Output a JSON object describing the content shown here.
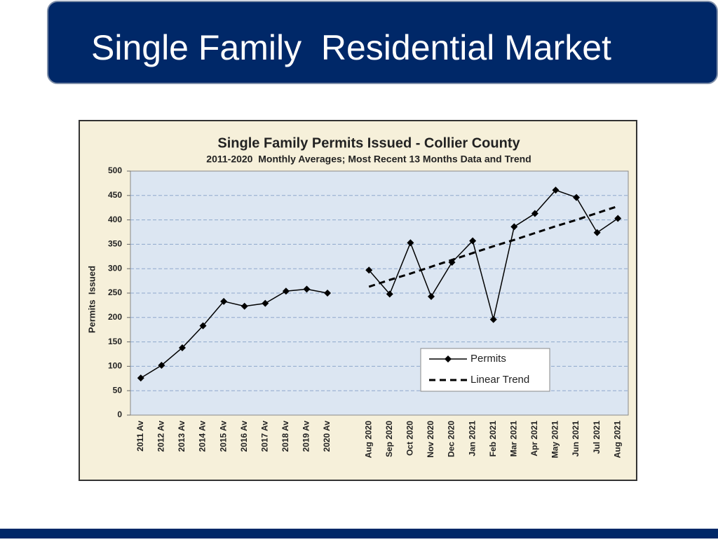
{
  "slide": {
    "title": "Single Family  Residential Market"
  },
  "chart_data": {
    "type": "line",
    "title": "Single Family Permits Issued - Collier County",
    "subtitle": "2011-2020  Monthly Averages; Most Recent 13 Months Data and Trend",
    "y_label": "Permits  Issued",
    "categories": [
      "2011 Av",
      "2012 Av",
      "2013 Av",
      "2014 Av",
      "2015 Av",
      "2016 Av",
      "2017 Av",
      "2018 Av",
      "2019 Av",
      "2020 Av",
      null,
      "Aug 2020",
      "Sep 2020",
      "Oct 2020",
      "Nov 2020",
      "Dec 2020",
      "Jan 2021",
      "Feb 2021",
      "Mar 2021",
      "Apr 2021",
      "May 2021",
      "Jun 2021",
      "Jul 2021",
      "Aug 2021"
    ],
    "series": [
      {
        "name": "Permits",
        "color": "#000000",
        "marker": "diamond",
        "dash": false,
        "values": [
          76,
          102,
          138,
          183,
          233,
          223,
          229,
          254,
          258,
          250,
          null,
          297,
          248,
          353,
          243,
          313,
          357,
          196,
          386,
          413,
          461,
          446,
          374,
          403
        ]
      },
      {
        "name": "Linear Trend",
        "color": "#000000",
        "marker": "none",
        "dash": true,
        "values": [
          null,
          null,
          null,
          null,
          null,
          null,
          null,
          null,
          null,
          null,
          null,
          263,
          277,
          290,
          304,
          318,
          332,
          346,
          359,
          373,
          387,
          400,
          414,
          428
        ]
      }
    ],
    "ylim": [
      0,
      500
    ],
    "yticks": [
      0,
      50,
      100,
      150,
      200,
      250,
      300,
      350,
      400,
      450,
      500
    ],
    "grid": true
  }
}
